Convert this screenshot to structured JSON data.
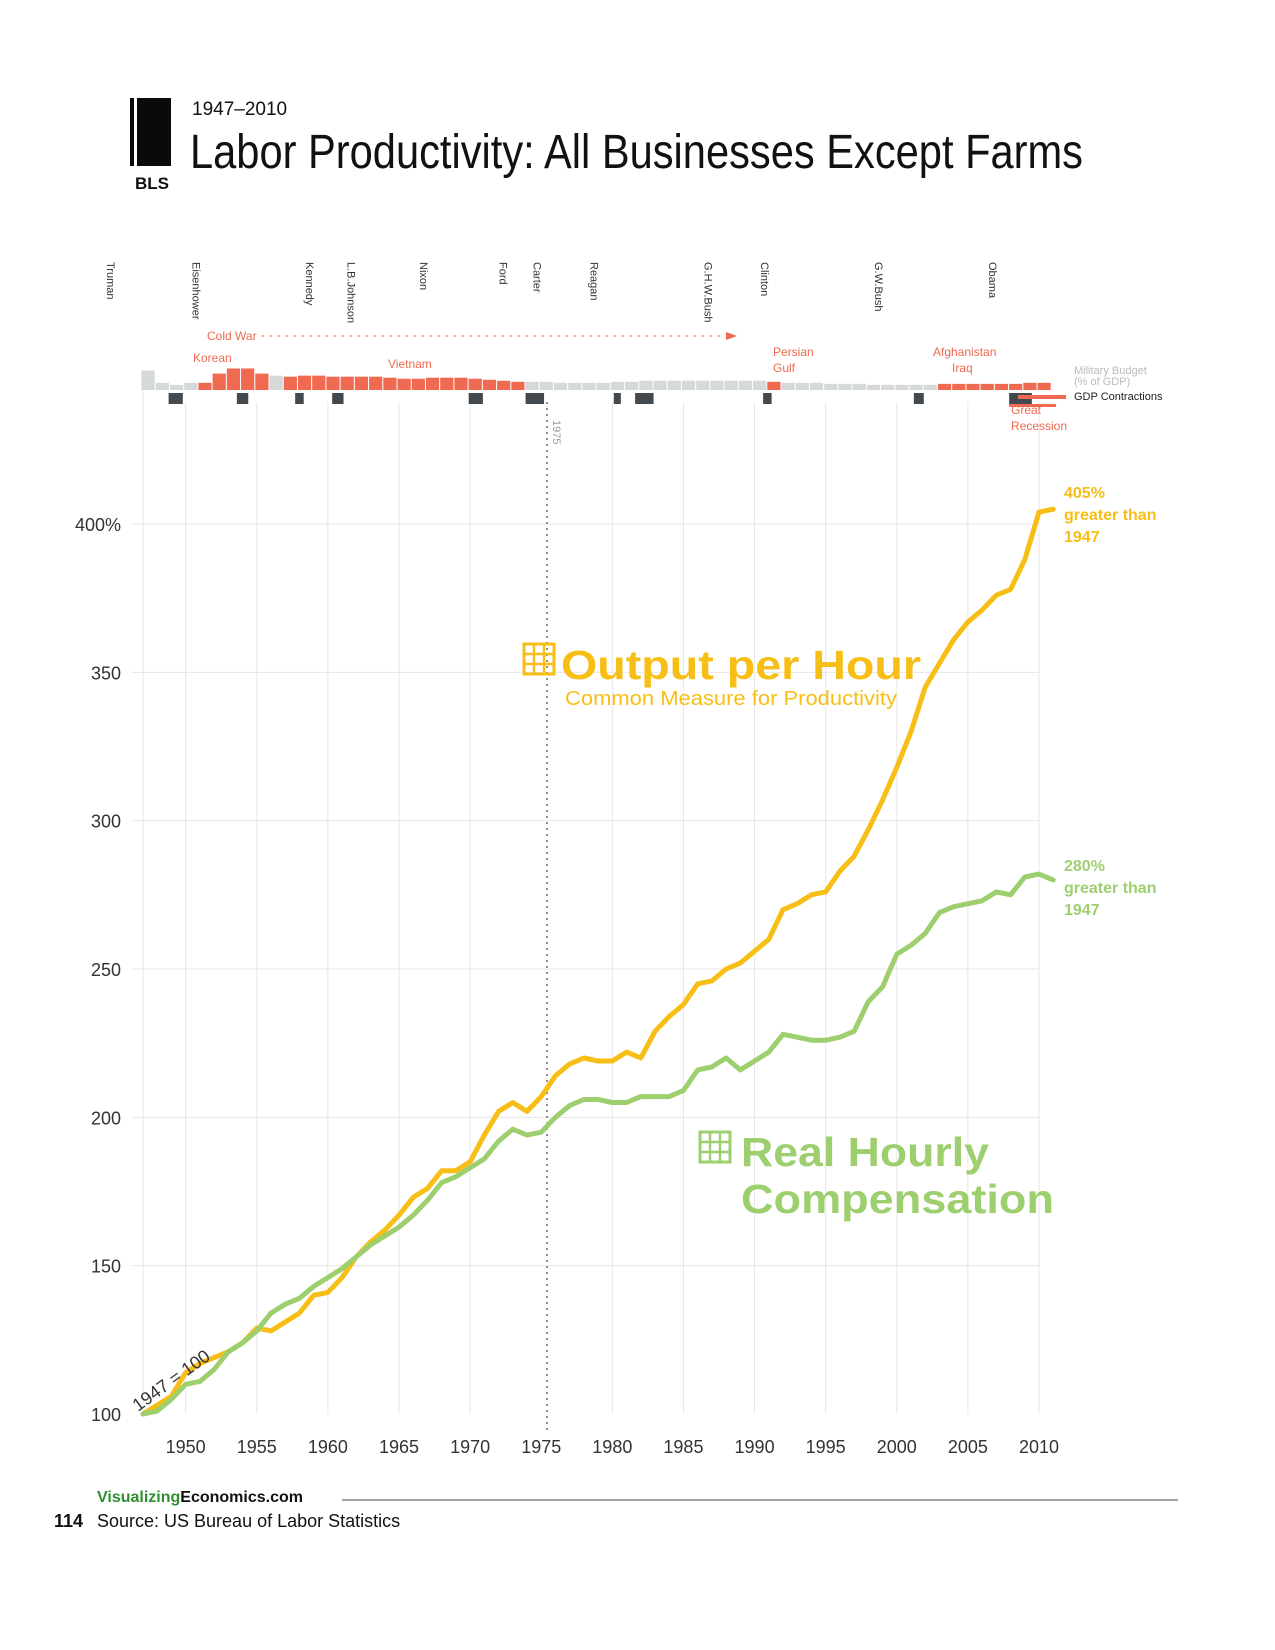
{
  "header": {
    "subtitle": "1947–2010",
    "title": "Labor Productivity: All Businesses Except Farms",
    "badge": "BLS"
  },
  "presidents": [
    "Truman",
    "Eisenhower",
    "Kennedy",
    "L.B.Johnson",
    "Nixon",
    "Ford",
    "Carter",
    "Reagan",
    "G.H.W.Bush",
    "Clinton",
    "G.W.Bush",
    "Obama"
  ],
  "president_years": [
    1947,
    1953,
    1961,
    1963.9,
    1969,
    1974.6,
    1977,
    1981,
    1989,
    1993,
    2001,
    2009
  ],
  "wars": {
    "cold_war": "Cold War",
    "korean": "Korean",
    "vietnam": "Vietnam",
    "persian_gulf_1": "Persian",
    "persian_gulf_2": "Gulf",
    "afghanistan": "Afghanistan",
    "iraq": "Iraq",
    "great_recession_1": "Great",
    "great_recession_2": "Recession"
  },
  "timeline_legend": {
    "military_budget_1": "Military Budget",
    "military_budget_2": "(% of GDP)",
    "gdp_contractions": "GDP Contractions"
  },
  "marker_1975": "1975",
  "baseline_note": "1947 = 100",
  "annotations": {
    "output_1": "405%",
    "output_2": "greater than",
    "output_3": "1947",
    "comp_1": "280%",
    "comp_2": "greater than",
    "comp_3": "1947"
  },
  "series_labels": {
    "output_title": "Output per Hour",
    "output_sub": "Common Measure for Productivity",
    "comp_title_1": "Real Hourly",
    "comp_title_2": "Compensation"
  },
  "military_budget": {
    "years": [
      1947,
      1948,
      1949,
      1950,
      1951,
      1952,
      1953,
      1954,
      1955,
      1956,
      1957,
      1958,
      1959,
      1960,
      1961,
      1962,
      1963,
      1964,
      1965,
      1966,
      1967,
      1968,
      1969,
      1970,
      1971,
      1972,
      1973,
      1974,
      1975,
      1976,
      1977,
      1978,
      1979,
      1980,
      1981,
      1982,
      1983,
      1984,
      1985,
      1986,
      1987,
      1988,
      1989,
      1990,
      1991,
      1992,
      1993,
      1994,
      1995,
      1996,
      1997,
      1998,
      1999,
      2000,
      2001,
      2002,
      2003,
      2004,
      2005,
      2006,
      2007,
      2008,
      2009,
      2010
    ],
    "values": [
      9.5,
      3.5,
      2.5,
      3.5,
      3.5,
      8,
      10.5,
      10.5,
      8,
      7,
      6.5,
      7,
      7,
      6.5,
      6.5,
      6.5,
      6.5,
      6,
      5.5,
      5.5,
      6,
      6,
      6,
      5.5,
      5,
      4.5,
      4,
      4,
      4,
      3.5,
      3.5,
      3.5,
      3.5,
      4,
      4,
      4.5,
      4.5,
      4.5,
      4.5,
      4.5,
      4.5,
      4.5,
      4.5,
      4.5,
      4,
      3.5,
      3.5,
      3.5,
      3,
      3,
      3,
      2.5,
      2.5,
      2.5,
      2.5,
      2.5,
      3,
      3,
      3,
      3,
      3,
      3,
      3.5,
      3.5
    ],
    "war_years": [
      1951,
      1952,
      1953,
      1954,
      1955,
      1957,
      1958,
      1959,
      1960,
      1961,
      1962,
      1963,
      1964,
      1965,
      1966,
      1967,
      1968,
      1969,
      1970,
      1971,
      1972,
      1973,
      1991,
      2003,
      2004,
      2005,
      2006,
      2007,
      2008,
      2009,
      2010
    ]
  },
  "gdp_contractions": [
    [
      1948.8,
      1949.8
    ],
    [
      1953.6,
      1954.4
    ],
    [
      1957.7,
      1958.3
    ],
    [
      1960.3,
      1961.1
    ],
    [
      1969.9,
      1970.9
    ],
    [
      1973.9,
      1975.2
    ],
    [
      1980.1,
      1980.6
    ],
    [
      1981.6,
      1982.9
    ],
    [
      1990.6,
      1991.2
    ],
    [
      2001.2,
      2001.9
    ],
    [
      2007.9,
      2009.5
    ]
  ],
  "colors": {
    "output": "#f7be16",
    "compensation": "#9ecf6f",
    "war": "#ef6a50",
    "budget": "#d5d9d8",
    "contraction": "#434a4f",
    "grid": "#e7e7e7",
    "brand_green": "#2f8f2f"
  },
  "chart_data": {
    "type": "line",
    "title": "Labor Productivity: All Businesses Except Farms",
    "xlabel": "",
    "ylabel": "",
    "xlim": [
      1947,
      2011
    ],
    "ylim": [
      100,
      400
    ],
    "yticks": [
      100,
      150,
      200,
      250,
      300,
      350,
      400
    ],
    "ytick_labels": [
      "100",
      "150",
      "200",
      "250",
      "300",
      "350",
      "400%"
    ],
    "xticks": [
      1950,
      1955,
      1960,
      1965,
      1970,
      1975,
      1980,
      1985,
      1990,
      1995,
      2000,
      2005,
      2010
    ],
    "xtick_labels": [
      "1950",
      "1955",
      "1960",
      "1965",
      "1970",
      "1975",
      "1980",
      "1985",
      "1990",
      "1995",
      "2000",
      "2005",
      "2010"
    ],
    "x": [
      1947,
      1948,
      1949,
      1950,
      1951,
      1952,
      1953,
      1954,
      1955,
      1956,
      1957,
      1958,
      1959,
      1960,
      1961,
      1962,
      1963,
      1964,
      1965,
      1966,
      1967,
      1968,
      1969,
      1970,
      1971,
      1972,
      1973,
      1974,
      1975,
      1976,
      1977,
      1978,
      1979,
      1980,
      1981,
      1982,
      1983,
      1984,
      1985,
      1986,
      1987,
      1988,
      1989,
      1990,
      1991,
      1992,
      1993,
      1994,
      1995,
      1996,
      1997,
      1998,
      1999,
      2000,
      2001,
      2002,
      2003,
      2004,
      2005,
      2006,
      2007,
      2008,
      2009,
      2010,
      2011
    ],
    "series": [
      {
        "name": "Output per Hour",
        "values": [
          100,
          103,
          106,
          114,
          117,
          119,
          121,
          124,
          129,
          128,
          131,
          134,
          140,
          141,
          146,
          153,
          158,
          162,
          167,
          173,
          176,
          182,
          182,
          185,
          194,
          202,
          205,
          202,
          207,
          214,
          218,
          220,
          219,
          219,
          222,
          220,
          229,
          234,
          238,
          245,
          246,
          250,
          252,
          256,
          260,
          270,
          272,
          275,
          276,
          283,
          288,
          297,
          307,
          318,
          330,
          345,
          353,
          361,
          367,
          371,
          376,
          378,
          388,
          404,
          405
        ]
      },
      {
        "name": "Real Hourly Compensation",
        "values": [
          100,
          101,
          105,
          110,
          111,
          115,
          121,
          124,
          128,
          134,
          137,
          139,
          143,
          146,
          149,
          153,
          157,
          160,
          163,
          167,
          172,
          178,
          180,
          183,
          186,
          192,
          196,
          194,
          195,
          200,
          204,
          206,
          206,
          205,
          205,
          207,
          207,
          207,
          209,
          216,
          217,
          220,
          216,
          219,
          222,
          228,
          227,
          226,
          226,
          227,
          229,
          239,
          244,
          255,
          258,
          262,
          269,
          271,
          272,
          273,
          276,
          275,
          281,
          282,
          280
        ]
      }
    ]
  },
  "footer": {
    "brand_1": "Visualizing",
    "brand_2": "Economics.com",
    "page_number": "114",
    "source": "Source: US Bureau of Labor Statistics"
  }
}
